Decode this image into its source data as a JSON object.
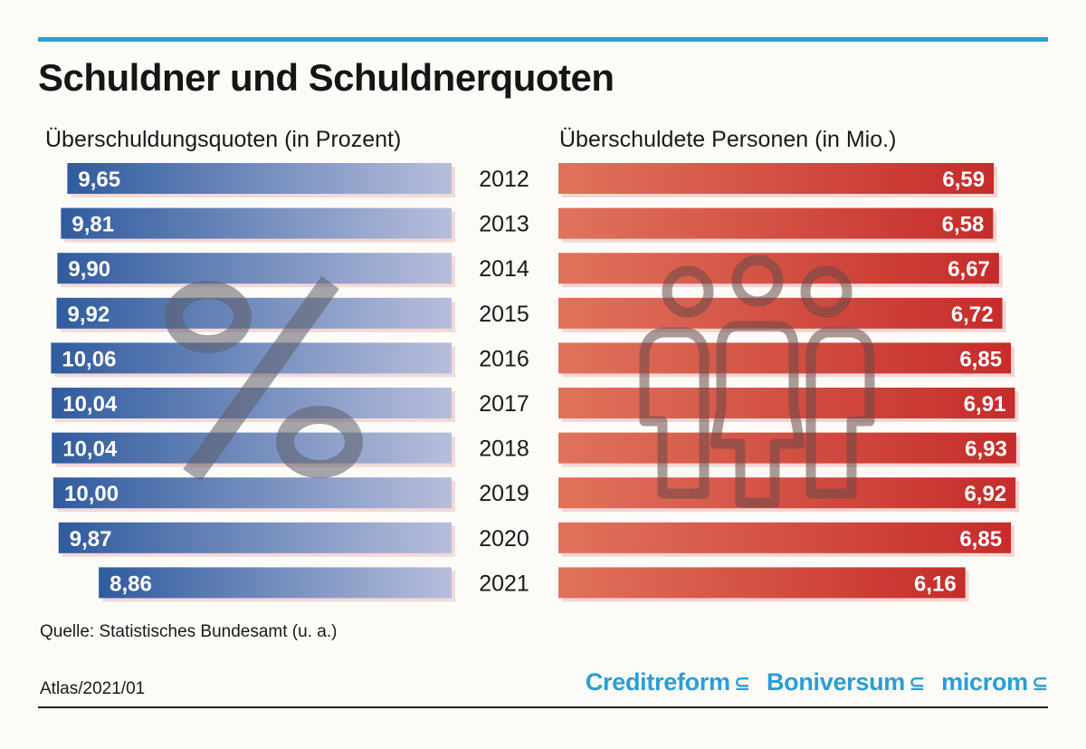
{
  "title": "Schuldner und Schuldnerquoten",
  "left_subtitle": "Überschuldungsquoten (in Prozent)",
  "right_subtitle": "Überschuldete Personen (in Mio.)",
  "source": "Quelle: Statistisches Bundesamt (u. a.)",
  "footer_id": "Atlas/2021/01",
  "logos": [
    "Creditreform",
    "Boniversum",
    "microm"
  ],
  "colors": {
    "accent_line": "#2c9fd6",
    "left_bar_dark": "#2f5b9e",
    "left_bar_light": "#b7bedc",
    "right_bar_light": "#e0735c",
    "right_bar_dark": "#c62c2a",
    "logo_blue": "#2a9ed5"
  },
  "chart_data": [
    {
      "type": "bar",
      "orientation": "horizontal",
      "title": "Überschuldungsquoten (in Prozent)",
      "categories": [
        "2012",
        "2013",
        "2014",
        "2015",
        "2016",
        "2017",
        "2018",
        "2019",
        "2020",
        "2021"
      ],
      "values": [
        9.65,
        9.81,
        9.9,
        9.92,
        10.06,
        10.04,
        10.04,
        10.0,
        9.87,
        8.86
      ],
      "value_labels": [
        "9,65",
        "9,81",
        "9,90",
        "9,92",
        "10,06",
        "10,04",
        "10,04",
        "10,00",
        "9,87",
        "8,86"
      ],
      "background_symbol": "percent-icon"
    },
    {
      "type": "bar",
      "orientation": "horizontal",
      "title": "Überschuldete Personen (in Mio.)",
      "categories": [
        "2012",
        "2013",
        "2014",
        "2015",
        "2016",
        "2017",
        "2018",
        "2019",
        "2020",
        "2021"
      ],
      "values": [
        6.59,
        6.58,
        6.67,
        6.72,
        6.85,
        6.91,
        6.93,
        6.92,
        6.85,
        6.16
      ],
      "value_labels": [
        "6,59",
        "6,58",
        "6,67",
        "6,72",
        "6,85",
        "6,91",
        "6,93",
        "6,92",
        "6,85",
        "6,16"
      ],
      "background_symbol": "people-icon"
    }
  ]
}
